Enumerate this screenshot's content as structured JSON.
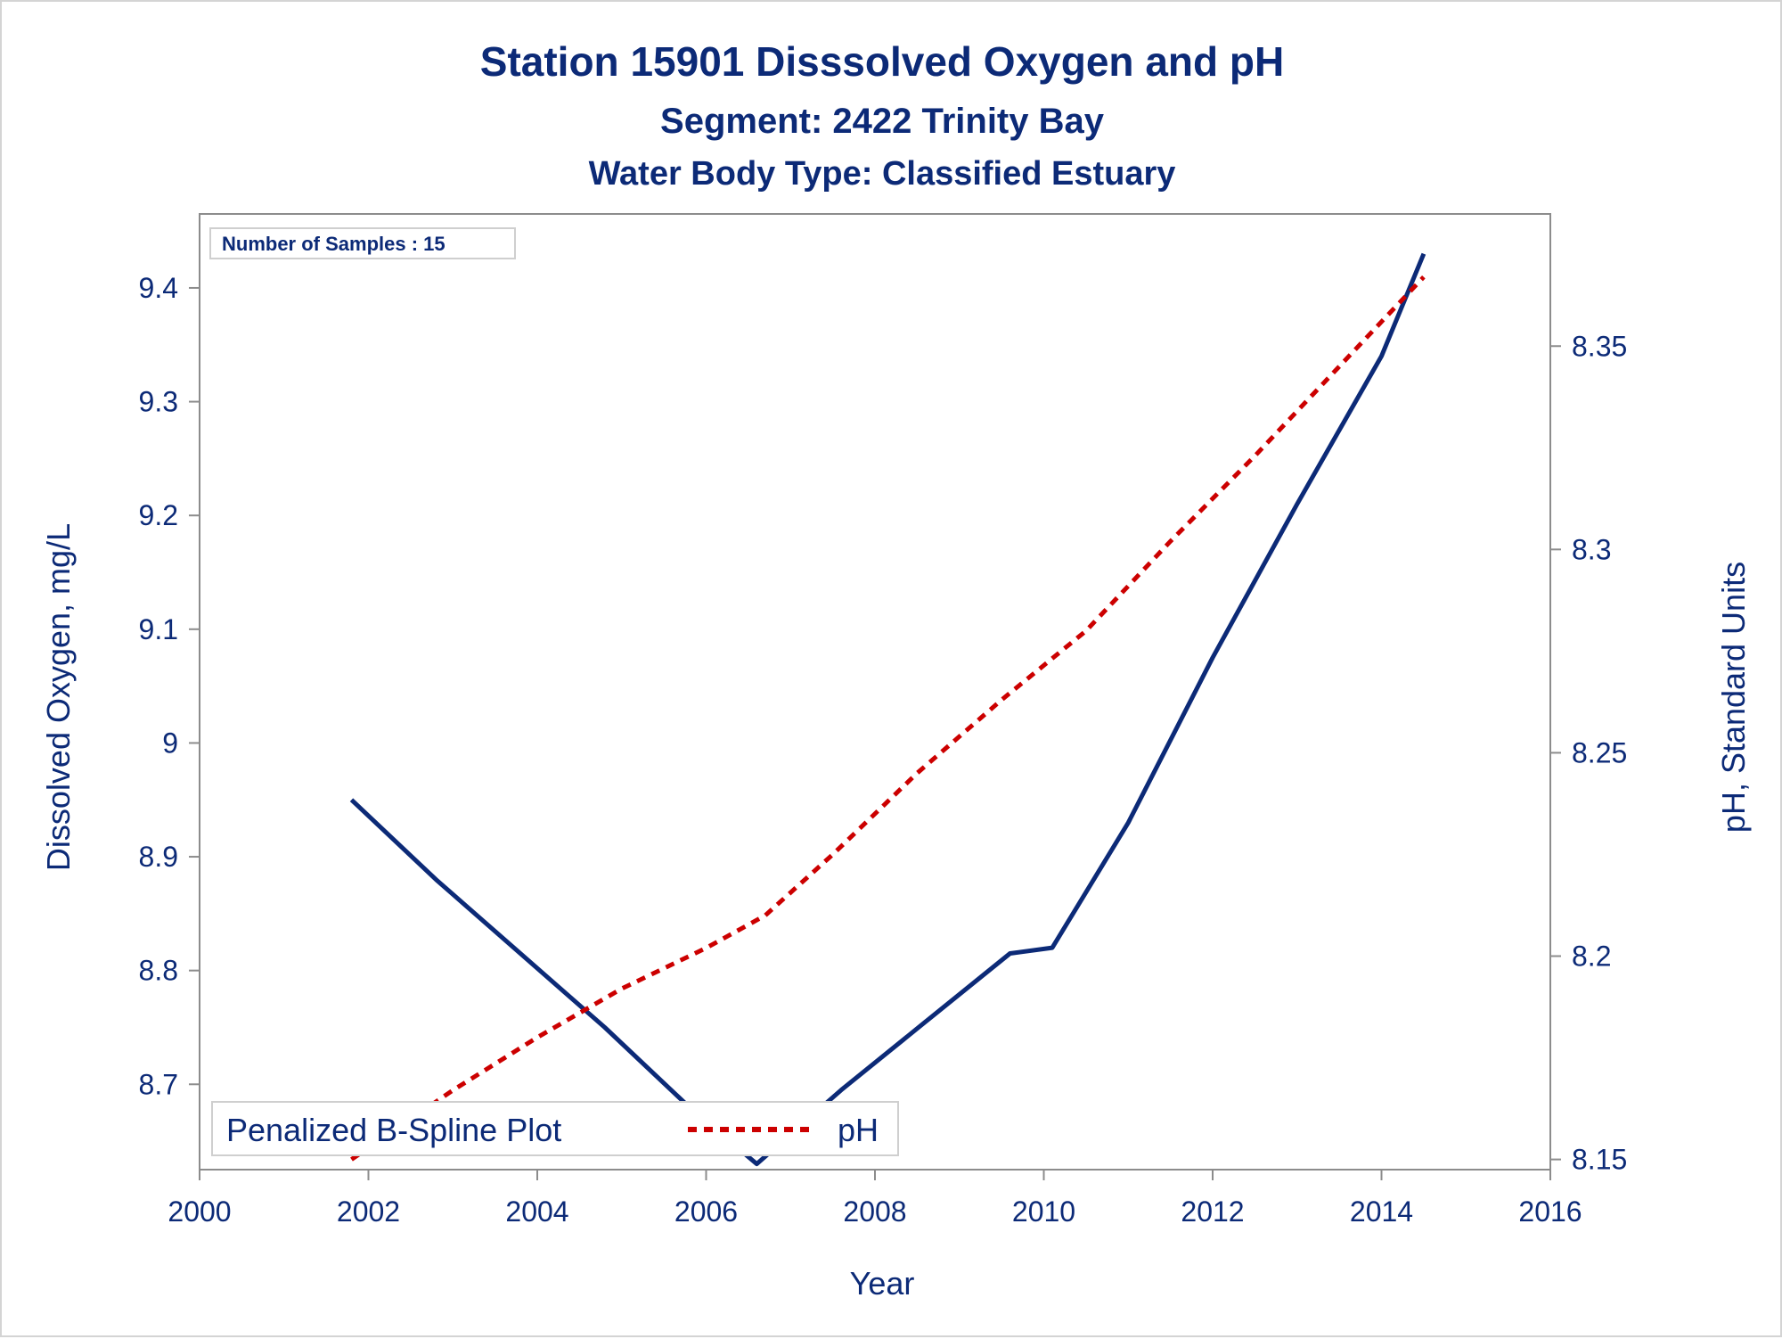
{
  "chart_data": {
    "type": "line",
    "title": "Station 15901   Disssolved Oxygen and pH",
    "subtitle": "Segment: 2422  Trinity Bay",
    "subtitle2": "Water Body Type: Classified Estuary",
    "xlabel": "Year",
    "ylabel": "Dissolved Oxygen, mg/L",
    "y2label": "pH, Standard Units",
    "xlim": [
      2000,
      2016
    ],
    "ylim": [
      8.625,
      9.465
    ],
    "y2lim": [
      8.1475,
      8.3825
    ],
    "x_ticks": [
      "2000",
      "2002",
      "2004",
      "2006",
      "2008",
      "2010",
      "2012",
      "2014",
      "2016"
    ],
    "y_ticks": [
      "8.7",
      "8.8",
      "8.9",
      "9",
      "9.1",
      "9.2",
      "9.3",
      "9.4"
    ],
    "y2_ticks": [
      "8.15",
      "8.2",
      "8.25",
      "8.3",
      "8.35"
    ],
    "inset_text": "Number of Samples : 15",
    "legend": {
      "title": "Penalized B-Spline Plot",
      "position": "bottom-left",
      "entries": [
        "pH"
      ]
    },
    "series": [
      {
        "axis": "left",
        "color": "#0c2a77",
        "style": "solid",
        "x": [
          2001.8,
          2002.8,
          2003.8,
          2004.8,
          2005.8,
          2006.6,
          2007.6,
          2008.6,
          2009.6,
          2010.1,
          2011.0,
          2012.0,
          2013.0,
          2014.0,
          2014.5
        ],
        "values": [
          8.95,
          8.88,
          8.815,
          8.75,
          8.68,
          8.63,
          8.695,
          8.755,
          8.815,
          8.82,
          8.93,
          9.075,
          9.21,
          9.34,
          9.43
        ]
      },
      {
        "name": "pH",
        "axis": "right",
        "color": "#cc0000",
        "style": "dashed",
        "x": [
          2001.8,
          2003.0,
          2004.0,
          2005.0,
          2006.0,
          2006.7,
          2007.5,
          2008.5,
          2009.5,
          2010.5,
          2011.5,
          2012.5,
          2013.5,
          2014.5
        ],
        "values": [
          8.15,
          8.167,
          8.18,
          8.192,
          8.202,
          8.21,
          8.225,
          8.245,
          8.263,
          8.28,
          8.302,
          8.323,
          8.345,
          8.367
        ]
      }
    ]
  },
  "colors": {
    "text": "#0c2a77",
    "axis": "#8c8c8c",
    "do_line": "#0c2a77",
    "ph_line": "#cc0000"
  }
}
